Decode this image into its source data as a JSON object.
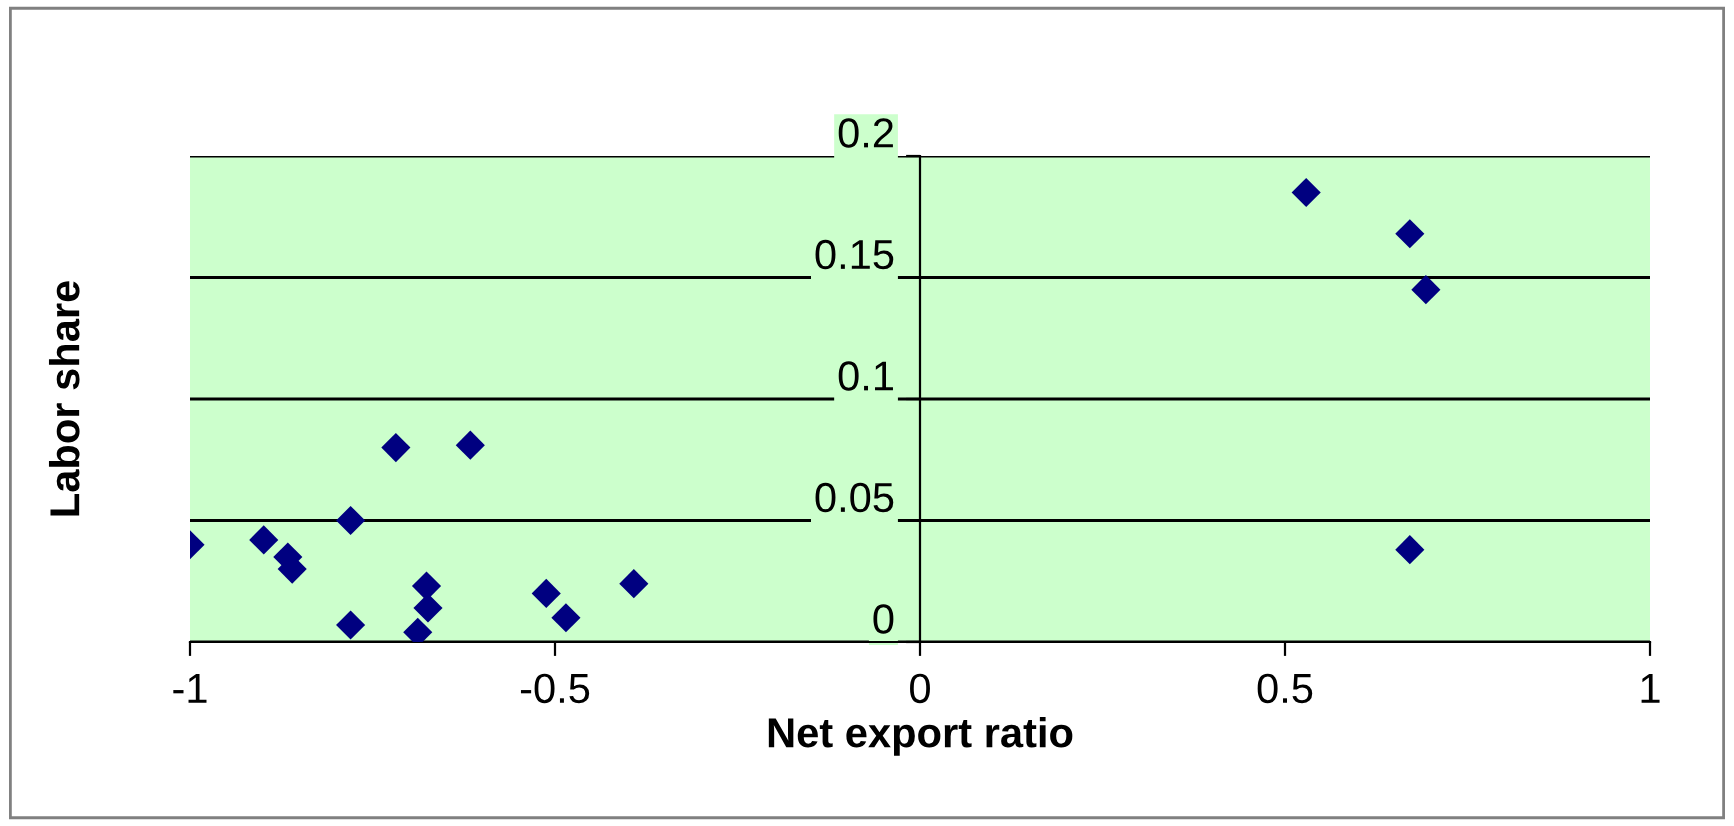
{
  "chart_data": {
    "type": "scatter",
    "xlabel": "Net export ratio",
    "ylabel": "Labor share",
    "x": [
      -1,
      -0.899,
      -0.866,
      -0.86,
      -0.78,
      -0.78,
      -0.718,
      -0.616,
      -0.676,
      -0.674,
      -0.688,
      -0.512,
      -0.485,
      -0.392,
      0.529,
      0.671,
      0.693,
      0.671
    ],
    "series": [
      {
        "color": "#000080",
        "values": [
          0.04,
          0.042,
          0.035,
          0.03,
          0.05,
          0.007,
          0.08,
          0.081,
          0.023,
          0.014,
          0.004,
          0.02,
          0.01,
          0.024,
          0.185,
          0.168,
          0.145,
          0.038
        ]
      }
    ],
    "xlim": [
      -1,
      1
    ],
    "xticks": [
      -1,
      -0.5,
      0,
      0.5,
      1
    ],
    "ylim": [
      0,
      0.2
    ],
    "yticks": [
      0,
      0.05,
      0.1,
      0.15,
      0.2
    ],
    "grid": "y",
    "marker": "diamond",
    "legend": false
  }
}
